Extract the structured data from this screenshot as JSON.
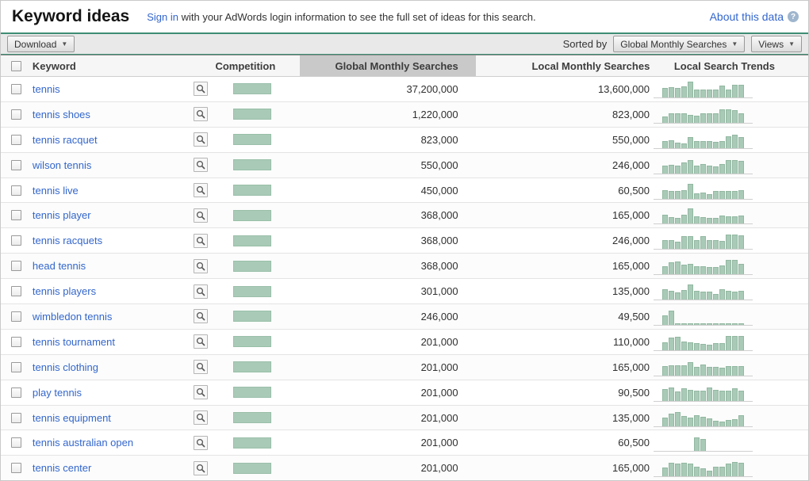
{
  "header": {
    "title": "Keyword ideas",
    "signin_link": "Sign in",
    "signin_text": " with your AdWords login information to see the full set of ideas for this search.",
    "about_link": "About this data",
    "help_icon": "?"
  },
  "toolbar": {
    "download_label": "Download",
    "sorted_by_label": "Sorted by",
    "sort_dropdown_value": "Global Monthly Searches",
    "views_label": "Views",
    "dropdown_arrow": "▼"
  },
  "table": {
    "columns": {
      "keyword": "Keyword",
      "competition": "Competition",
      "global": "Global Monthly Searches",
      "local": "Local Monthly Searches",
      "trends": "Local Search Trends"
    },
    "sorted_column": "Global Monthly Searches",
    "rows": [
      {
        "keyword": "tennis",
        "competition": 1,
        "global_monthly": "37,200,000",
        "local_monthly": "13,600,000",
        "trend": [
          0.6,
          0.65,
          0.6,
          0.7,
          1.0,
          0.5,
          0.5,
          0.5,
          0.5,
          0.75,
          0.5,
          0.8,
          0.8
        ]
      },
      {
        "keyword": "tennis shoes",
        "competition": 1,
        "global_monthly": "1,220,000",
        "local_monthly": "823,000",
        "trend": [
          0.4,
          0.6,
          0.6,
          0.6,
          0.5,
          0.45,
          0.6,
          0.6,
          0.6,
          0.85,
          0.85,
          0.8,
          0.6
        ]
      },
      {
        "keyword": "tennis racquet",
        "competition": 1,
        "global_monthly": "823,000",
        "local_monthly": "550,000",
        "trend": [
          0.45,
          0.5,
          0.35,
          0.3,
          0.7,
          0.45,
          0.45,
          0.45,
          0.4,
          0.45,
          0.75,
          0.85,
          0.7
        ]
      },
      {
        "keyword": "wilson tennis",
        "competition": 1,
        "global_monthly": "550,000",
        "local_monthly": "246,000",
        "trend": [
          0.5,
          0.55,
          0.5,
          0.7,
          0.85,
          0.5,
          0.6,
          0.5,
          0.45,
          0.6,
          0.85,
          0.85,
          0.8
        ]
      },
      {
        "keyword": "tennis live",
        "competition": 1,
        "global_monthly": "450,000",
        "local_monthly": "60,500",
        "trend": [
          0.55,
          0.5,
          0.5,
          0.55,
          0.95,
          0.35,
          0.4,
          0.3,
          0.5,
          0.5,
          0.5,
          0.5,
          0.55
        ]
      },
      {
        "keyword": "tennis player",
        "competition": 1,
        "global_monthly": "368,000",
        "local_monthly": "165,000",
        "trend": [
          0.55,
          0.4,
          0.35,
          0.55,
          0.95,
          0.45,
          0.4,
          0.35,
          0.35,
          0.5,
          0.45,
          0.45,
          0.5
        ]
      },
      {
        "keyword": "tennis racquets",
        "competition": 1,
        "global_monthly": "368,000",
        "local_monthly": "246,000",
        "trend": [
          0.55,
          0.55,
          0.45,
          0.8,
          0.8,
          0.55,
          0.8,
          0.55,
          0.55,
          0.5,
          0.9,
          0.9,
          0.85
        ]
      },
      {
        "keyword": "head tennis",
        "competition": 1,
        "global_monthly": "368,000",
        "local_monthly": "165,000",
        "trend": [
          0.5,
          0.75,
          0.8,
          0.6,
          0.65,
          0.5,
          0.5,
          0.45,
          0.45,
          0.55,
          0.9,
          0.9,
          0.65
        ]
      },
      {
        "keyword": "tennis players",
        "competition": 1,
        "global_monthly": "301,000",
        "local_monthly": "135,000",
        "trend": [
          0.65,
          0.55,
          0.45,
          0.6,
          0.95,
          0.55,
          0.5,
          0.5,
          0.35,
          0.65,
          0.55,
          0.5,
          0.55
        ]
      },
      {
        "keyword": "wimbledon tennis",
        "competition": 1,
        "global_monthly": "246,000",
        "local_monthly": "49,500",
        "trend": [
          0.6,
          0.9,
          0.05,
          0.05,
          0.05,
          0.05,
          0.05,
          0.05,
          0.05,
          0.05,
          0.05,
          0.05,
          0.05
        ]
      },
      {
        "keyword": "tennis tournament",
        "competition": 1,
        "global_monthly": "201,000",
        "local_monthly": "110,000",
        "trend": [
          0.5,
          0.8,
          0.85,
          0.55,
          0.5,
          0.45,
          0.4,
          0.35,
          0.45,
          0.45,
          0.9,
          0.9,
          0.9
        ]
      },
      {
        "keyword": "tennis clothing",
        "competition": 1,
        "global_monthly": "201,000",
        "local_monthly": "165,000",
        "trend": [
          0.6,
          0.65,
          0.65,
          0.65,
          0.85,
          0.55,
          0.7,
          0.55,
          0.55,
          0.5,
          0.6,
          0.6,
          0.6
        ]
      },
      {
        "keyword": "play tennis",
        "competition": 1,
        "global_monthly": "201,000",
        "local_monthly": "90,500",
        "trend": [
          0.75,
          0.85,
          0.6,
          0.8,
          0.7,
          0.65,
          0.65,
          0.85,
          0.7,
          0.65,
          0.65,
          0.8,
          0.65
        ]
      },
      {
        "keyword": "tennis equipment",
        "competition": 1,
        "global_monthly": "201,000",
        "local_monthly": "135,000",
        "trend": [
          0.55,
          0.8,
          0.9,
          0.65,
          0.55,
          0.7,
          0.6,
          0.5,
          0.35,
          0.3,
          0.4,
          0.45,
          0.7
        ]
      },
      {
        "keyword": "tennis australian open",
        "competition": 1,
        "global_monthly": "201,000",
        "local_monthly": "60,500",
        "trend": [
          0,
          0,
          0,
          0,
          0,
          0.85,
          0.75,
          0,
          0,
          0,
          0,
          0,
          0
        ]
      },
      {
        "keyword": "tennis center",
        "competition": 1,
        "global_monthly": "201,000",
        "local_monthly": "165,000",
        "trend": [
          0.55,
          0.85,
          0.8,
          0.85,
          0.8,
          0.6,
          0.5,
          0.35,
          0.6,
          0.6,
          0.8,
          0.9,
          0.85
        ]
      }
    ]
  },
  "colors": {
    "accent_teal": "#3e8d74",
    "bar_green": "#a9cab7",
    "bar_border": "#93b8a2",
    "link_blue": "#3366cc",
    "sorted_header_bg": "#c9c9c9"
  }
}
